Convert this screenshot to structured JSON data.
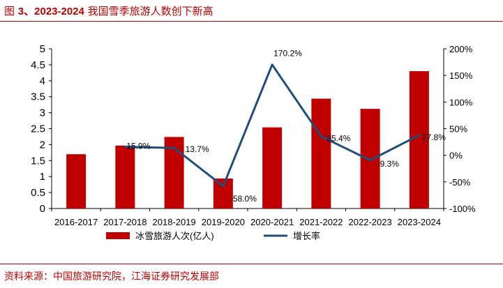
{
  "header": {
    "fig_label": "图",
    "fig_number": "3、2023-2024",
    "title_text": "我国雪季旅游人数创下新高"
  },
  "footer": {
    "source": "资料来源：中国旅游研究院，江海证券研究发展部"
  },
  "colors": {
    "accent": "#c00000",
    "bar": "#c00000",
    "line": "#1f4e79"
  },
  "chart_data": {
    "type": "bar",
    "title": "",
    "xlabel": "",
    "ylabel": "",
    "categories": [
      "2016-2017",
      "2017-2018",
      "2018-2019",
      "2019-2020",
      "2020-2021",
      "2021-2022",
      "2022-2023",
      "2023-2024"
    ],
    "ylim": [
      0,
      5
    ],
    "yticks": [
      "0",
      "0.5",
      "1",
      "1.5",
      "2",
      "2.5",
      "3",
      "3.5",
      "4",
      "4.5",
      "5"
    ],
    "y2lim": [
      -100,
      200
    ],
    "y2ticks": [
      "-100%",
      "-50%",
      "0%",
      "50%",
      "100%",
      "150%",
      "200%"
    ],
    "grid": false,
    "legend_position": "bottom",
    "series": [
      {
        "name": "冰雪旅游人次(亿人)",
        "type": "bar",
        "axis": "left",
        "values": [
          1.7,
          1.97,
          2.24,
          0.94,
          2.54,
          3.44,
          3.12,
          4.3
        ]
      },
      {
        "name": "增长率",
        "type": "line",
        "axis": "right",
        "values": [
          null,
          15.9,
          13.7,
          -58.0,
          170.2,
          35.4,
          -9.3,
          37.8
        ],
        "labels": [
          "",
          "15.9%",
          "13.7%",
          "-58.0%",
          "170.2%",
          "35.4%",
          "-9.3%",
          "37.8%"
        ]
      }
    ]
  }
}
